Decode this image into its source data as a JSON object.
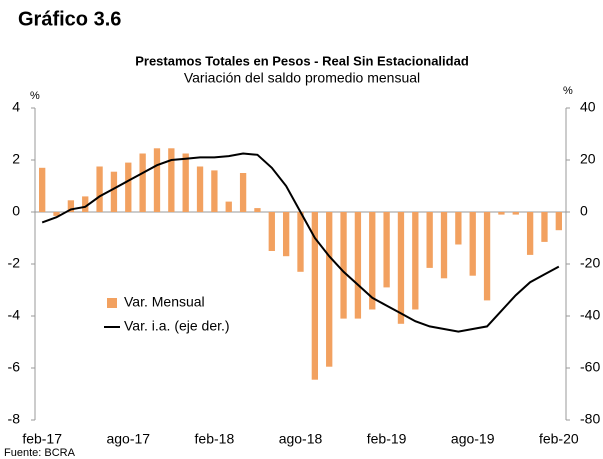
{
  "heading": "Gráfico 3.6",
  "chart_data": {
    "type": "bar_line",
    "title": "Prestamos Totales en Pesos - Real Sin Estacionalidad",
    "subtitle": "Variación del saldo promedio mensual",
    "y_unit": "%",
    "y2_unit": "%",
    "source": "Fuente: BCRA",
    "categories": [
      "feb-17",
      null,
      null,
      null,
      null,
      null,
      "ago-17",
      null,
      null,
      null,
      null,
      null,
      "feb-18",
      null,
      null,
      null,
      null,
      null,
      "ago-18",
      null,
      null,
      null,
      null,
      null,
      "feb-19",
      null,
      null,
      null,
      null,
      null,
      "ago-19",
      null,
      null,
      null,
      null,
      null,
      "feb-20"
    ],
    "series": [
      {
        "name": "Var. Mensual",
        "color": "#f2a160",
        "axis": "y",
        "values": [
          1.7,
          -0.15,
          0.45,
          0.6,
          1.75,
          1.55,
          1.9,
          2.25,
          2.45,
          2.45,
          2.25,
          1.75,
          1.6,
          0.4,
          1.5,
          0.15,
          -1.5,
          -1.7,
          -2.3,
          -6.45,
          -5.95,
          -4.1,
          -4.1,
          -3.75,
          -2.9,
          -4.3,
          -3.75,
          -2.15,
          -2.55,
          -1.25,
          -2.45,
          -3.4,
          -0.1,
          -0.1,
          -1.65,
          -1.15,
          -0.7
        ]
      },
      {
        "name": "Var. i.a. (eje der.)",
        "color": "#000000",
        "axis": "y2",
        "values": [
          -4,
          -2,
          1,
          2,
          6,
          9,
          12,
          15,
          18,
          20,
          20.5,
          21,
          21,
          21.5,
          22.5,
          22,
          17,
          10,
          0,
          -10,
          -17,
          -23,
          -28,
          -33,
          -36,
          -39,
          -42,
          -44,
          -45,
          -46,
          -45,
          -44,
          -38,
          -32,
          -27,
          -24,
          -21
        ]
      }
    ],
    "ylim": [
      -8,
      4
    ],
    "yticks": [
      -8,
      -6,
      -4,
      -2,
      0,
      2,
      4
    ],
    "y2lim": [
      -80,
      40
    ],
    "y2ticks": [
      -80,
      -60,
      -40,
      -20,
      0,
      20,
      40
    ]
  }
}
